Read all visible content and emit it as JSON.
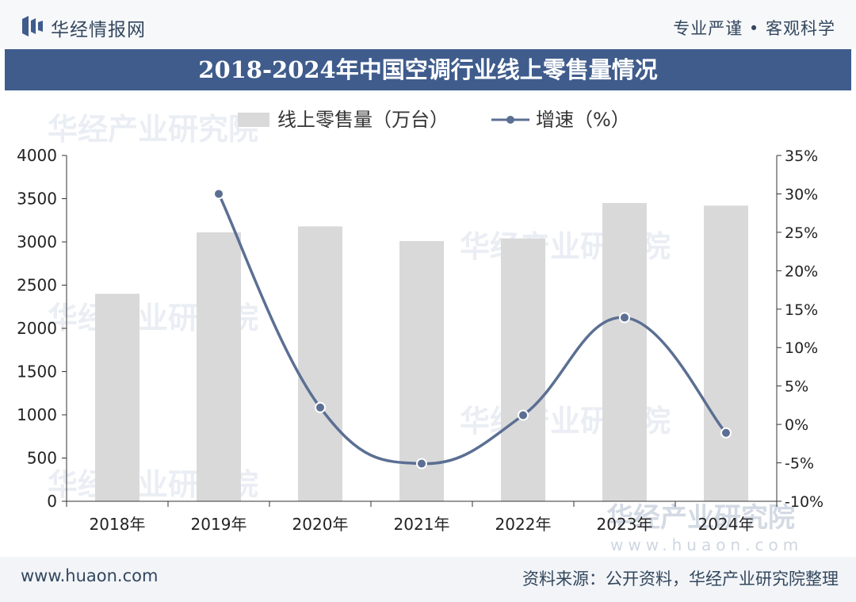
{
  "header": {
    "brand": "华经情报网",
    "slogan": "专业严谨 • 客观科学"
  },
  "title": "2018-2024年中国空调行业线上零售量情况",
  "footer": {
    "website": "www.huaon.com",
    "source": "资料来源：公开资料，华经产业研究院整理"
  },
  "watermark": {
    "text": "华经产业研究院",
    "url": "www.huaon.com"
  },
  "chart_data": {
    "type": "bar",
    "categories": [
      "2018年",
      "2019年",
      "2020年",
      "2021年",
      "2022年",
      "2023年",
      "2024年"
    ],
    "series": [
      {
        "name": "线上零售量（万台）",
        "type": "bar",
        "axis": "left",
        "color": "#d9d9d9",
        "values": [
          2400,
          3110,
          3180,
          3010,
          3040,
          3450,
          3420
        ]
      },
      {
        "name": "增速（%）",
        "type": "line",
        "axis": "right",
        "color": "#5b6f93",
        "values": [
          null,
          30.0,
          2.2,
          -5.1,
          1.2,
          13.9,
          -1.1
        ]
      }
    ],
    "left_axis": {
      "min": 0,
      "max": 4000,
      "step": 500,
      "ticks": [
        "0",
        "500",
        "1000",
        "1500",
        "2000",
        "2500",
        "3000",
        "3500",
        "4000"
      ]
    },
    "right_axis": {
      "min": -10,
      "max": 35,
      "step": 5,
      "ticks": [
        "-10%",
        "-5%",
        "0%",
        "5%",
        "10%",
        "15%",
        "20%",
        "25%",
        "30%",
        "35%"
      ]
    },
    "legend_position": "top-center",
    "grid": false
  }
}
